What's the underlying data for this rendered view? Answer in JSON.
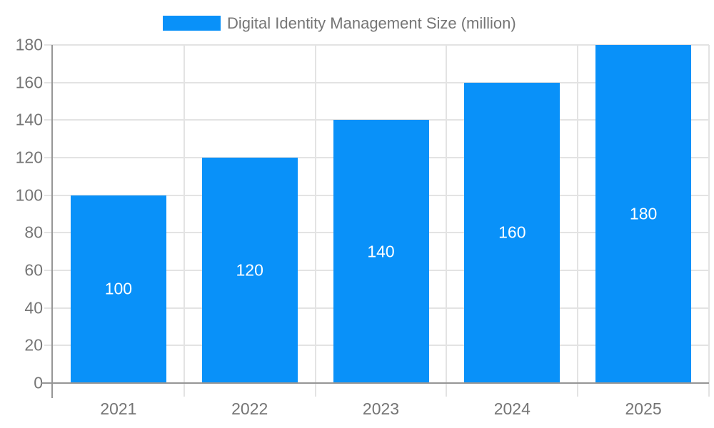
{
  "chart_data": {
    "type": "bar",
    "title": "Digital Identity Management Size (million)",
    "legend": [
      "Digital Identity Management Size (million)"
    ],
    "legend_position": "top",
    "categories": [
      "2021",
      "2022",
      "2023",
      "2024",
      "2025"
    ],
    "series": [
      {
        "name": "Digital Identity Management Size (million)",
        "values": [
          100,
          120,
          140,
          160,
          180
        ]
      }
    ],
    "value_labels": [
      "100",
      "120",
      "140",
      "160",
      "180"
    ],
    "xlabel": "",
    "ylabel": "",
    "ylim": [
      0,
      180
    ],
    "ytick_step": 20,
    "yticks": [
      "0",
      "20",
      "40",
      "60",
      "80",
      "100",
      "120",
      "140",
      "160",
      "180"
    ],
    "grid": true,
    "colors": {
      "bar": "#0991f9",
      "axis_line": "#969696",
      "gridline": "#e3e3e3",
      "tick_label": "#757575",
      "legend_text": "#757575",
      "value_label": "#ffffff",
      "background": "#ffffff"
    }
  }
}
